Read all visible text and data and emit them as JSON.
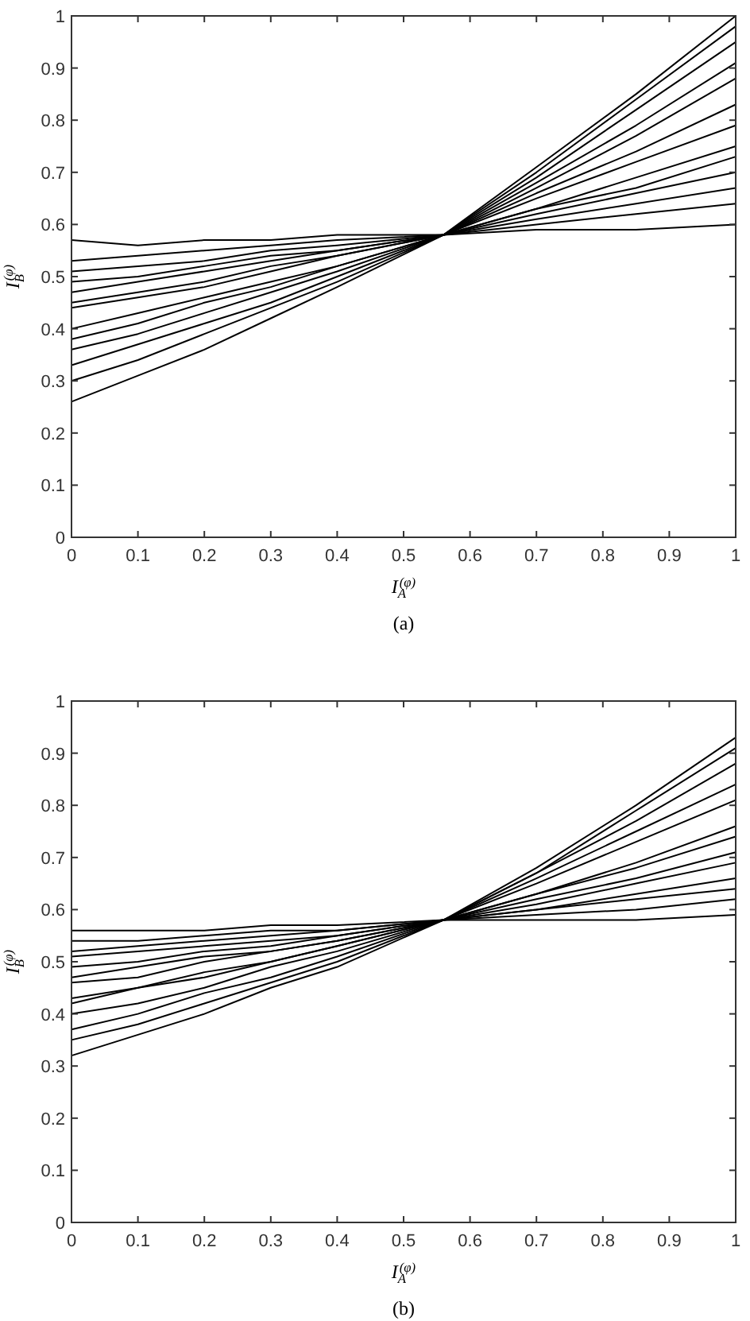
{
  "chart_data": [
    {
      "type": "line",
      "xlabel": "I$_{A}$$^{(φ)}$",
      "ylabel": "I$_{B}$$^{(φ)}$",
      "annotations": [
        "(a)"
      ],
      "x": [
        0,
        0.1,
        0.2,
        0.3,
        0.4,
        0.56,
        0.7,
        0.85,
        1
      ],
      "xlim": [
        0,
        1
      ],
      "ylim": [
        0,
        1
      ],
      "xticks": [
        0,
        0.1,
        0.2,
        0.3,
        0.4,
        0.5,
        0.6,
        0.7,
        0.8,
        0.9,
        1
      ],
      "yticks": [
        0,
        0.1,
        0.2,
        0.3,
        0.4,
        0.5,
        0.6,
        0.7,
        0.8,
        0.9,
        1
      ],
      "grid": false,
      "marker": "none",
      "line_style": "solid",
      "series": [
        {
          "color": "#000000",
          "values": [
            0.26,
            0.31,
            0.36,
            0.42,
            0.48,
            0.58,
            0.71,
            0.85,
            1.0
          ]
        },
        {
          "color": "#000000",
          "values": [
            0.3,
            0.34,
            0.39,
            0.44,
            0.49,
            0.58,
            0.7,
            0.84,
            0.98
          ]
        },
        {
          "color": "#000000",
          "values": [
            0.33,
            0.37,
            0.41,
            0.45,
            0.5,
            0.58,
            0.69,
            0.82,
            0.95
          ]
        },
        {
          "color": "#000000",
          "values": [
            0.36,
            0.39,
            0.43,
            0.47,
            0.51,
            0.58,
            0.68,
            0.79,
            0.91
          ]
        },
        {
          "color": "#000000",
          "values": [
            0.38,
            0.41,
            0.45,
            0.48,
            0.52,
            0.58,
            0.67,
            0.77,
            0.88
          ]
        },
        {
          "color": "#000000",
          "values": [
            0.4,
            0.43,
            0.46,
            0.49,
            0.52,
            0.58,
            0.66,
            0.74,
            0.83
          ]
        },
        {
          "color": "#000000",
          "values": [
            0.44,
            0.46,
            0.48,
            0.51,
            0.54,
            0.58,
            0.65,
            0.72,
            0.79
          ]
        },
        {
          "color": "#000000",
          "values": [
            0.45,
            0.47,
            0.49,
            0.52,
            0.54,
            0.58,
            0.63,
            0.69,
            0.75
          ]
        },
        {
          "color": "#000000",
          "values": [
            0.47,
            0.49,
            0.51,
            0.53,
            0.55,
            0.58,
            0.63,
            0.67,
            0.73
          ]
        },
        {
          "color": "#000000",
          "values": [
            0.49,
            0.5,
            0.52,
            0.54,
            0.55,
            0.58,
            0.62,
            0.66,
            0.7
          ]
        },
        {
          "color": "#000000",
          "values": [
            0.51,
            0.52,
            0.53,
            0.55,
            0.56,
            0.58,
            0.61,
            0.64,
            0.67
          ]
        },
        {
          "color": "#000000",
          "values": [
            0.53,
            0.54,
            0.55,
            0.56,
            0.57,
            0.58,
            0.6,
            0.62,
            0.64
          ]
        },
        {
          "color": "#000000",
          "values": [
            0.57,
            0.56,
            0.57,
            0.57,
            0.58,
            0.58,
            0.59,
            0.59,
            0.6
          ]
        }
      ]
    },
    {
      "type": "line",
      "xlabel": "I$_{A}$$^{(φ)}$",
      "ylabel": "I$_{B}$$^{(φ)}$",
      "annotations": [
        "(b)"
      ],
      "x": [
        0,
        0.1,
        0.2,
        0.3,
        0.4,
        0.56,
        0.7,
        0.85,
        1
      ],
      "xlim": [
        0,
        1
      ],
      "ylim": [
        0,
        1
      ],
      "xticks": [
        0,
        0.1,
        0.2,
        0.3,
        0.4,
        0.5,
        0.6,
        0.7,
        0.8,
        0.9,
        1
      ],
      "yticks": [
        0,
        0.1,
        0.2,
        0.3,
        0.4,
        0.5,
        0.6,
        0.7,
        0.8,
        0.9,
        1
      ],
      "grid": false,
      "marker": "none",
      "line_style": "solid",
      "series": [
        {
          "color": "#000000",
          "values": [
            0.32,
            0.36,
            0.4,
            0.45,
            0.49,
            0.58,
            0.68,
            0.8,
            0.93
          ]
        },
        {
          "color": "#000000",
          "values": [
            0.35,
            0.38,
            0.42,
            0.46,
            0.5,
            0.58,
            0.67,
            0.79,
            0.91
          ]
        },
        {
          "color": "#000000",
          "values": [
            0.37,
            0.4,
            0.44,
            0.47,
            0.51,
            0.58,
            0.67,
            0.77,
            0.88
          ]
        },
        {
          "color": "#000000",
          "values": [
            0.4,
            0.42,
            0.45,
            0.49,
            0.52,
            0.58,
            0.66,
            0.75,
            0.84
          ]
        },
        {
          "color": "#000000",
          "values": [
            0.42,
            0.45,
            0.47,
            0.5,
            0.53,
            0.58,
            0.65,
            0.73,
            0.81
          ]
        },
        {
          "color": "#000000",
          "values": [
            0.43,
            0.45,
            0.48,
            0.5,
            0.53,
            0.58,
            0.63,
            0.69,
            0.76
          ]
        },
        {
          "color": "#000000",
          "values": [
            0.46,
            0.47,
            0.5,
            0.52,
            0.54,
            0.58,
            0.63,
            0.68,
            0.74
          ]
        },
        {
          "color": "#000000",
          "values": [
            0.47,
            0.49,
            0.51,
            0.52,
            0.54,
            0.58,
            0.62,
            0.66,
            0.71
          ]
        },
        {
          "color": "#000000",
          "values": [
            0.49,
            0.5,
            0.52,
            0.53,
            0.55,
            0.58,
            0.61,
            0.65,
            0.69
          ]
        },
        {
          "color": "#000000",
          "values": [
            0.51,
            0.52,
            0.53,
            0.54,
            0.55,
            0.58,
            0.6,
            0.63,
            0.66
          ]
        },
        {
          "color": "#000000",
          "values": [
            0.52,
            0.53,
            0.54,
            0.55,
            0.56,
            0.58,
            0.6,
            0.62,
            0.64
          ]
        },
        {
          "color": "#000000",
          "values": [
            0.54,
            0.54,
            0.55,
            0.56,
            0.56,
            0.58,
            0.59,
            0.6,
            0.62
          ]
        },
        {
          "color": "#000000",
          "values": [
            0.56,
            0.56,
            0.56,
            0.57,
            0.57,
            0.58,
            0.58,
            0.58,
            0.59
          ]
        }
      ]
    }
  ]
}
